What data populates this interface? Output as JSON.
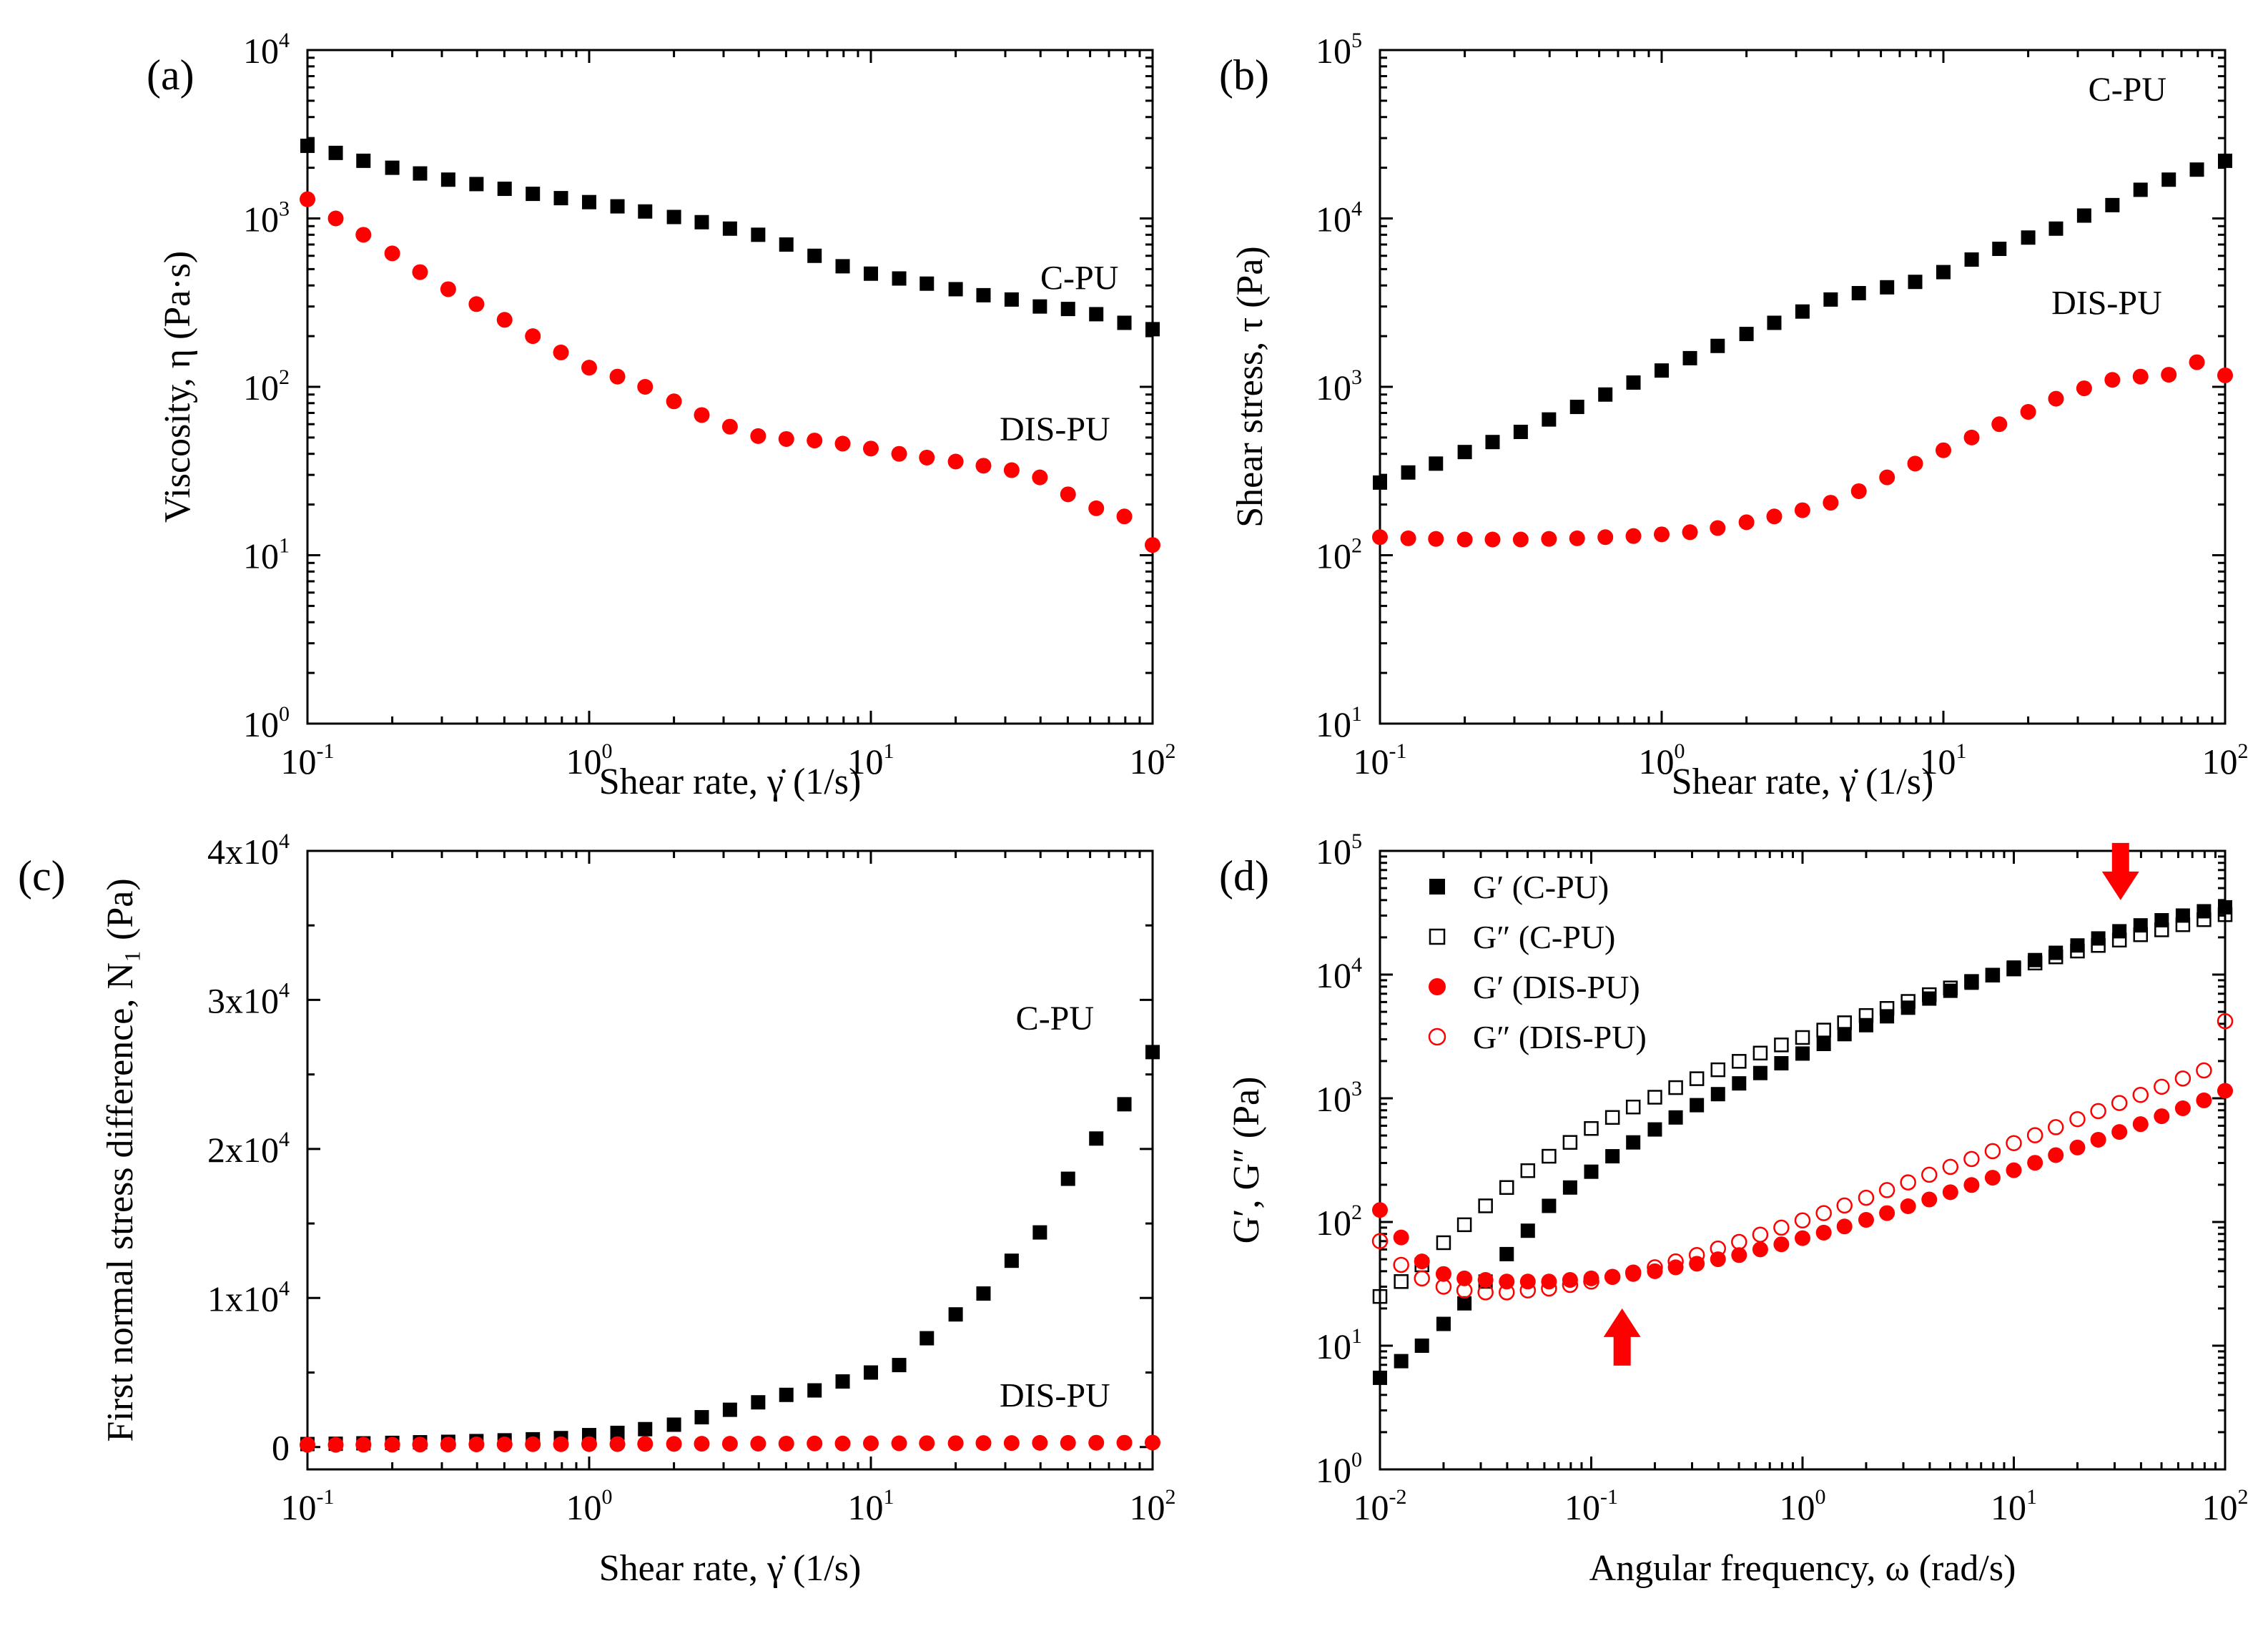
{
  "chart_data": [
    {
      "panel": "(a)",
      "type": "scatter",
      "xscale": "log",
      "yscale": "log",
      "xlim": [
        0.1,
        100
      ],
      "ylim": [
        1,
        10000
      ],
      "xlabel": "Shear rate, γ̇ (1/s)",
      "ylabel": "Viscosity, η (Pa·s)",
      "xticks": [
        {
          "b": "10",
          "e": "-1"
        },
        {
          "b": "10",
          "e": "0"
        },
        {
          "b": "10",
          "e": "1"
        },
        {
          "b": "10",
          "e": "2"
        }
      ],
      "yticks": [
        {
          "b": "10",
          "e": "0"
        },
        {
          "b": "10",
          "e": "1"
        },
        {
          "b": "10",
          "e": "2"
        },
        {
          "b": "10",
          "e": "3"
        },
        {
          "b": "10",
          "e": "4"
        }
      ],
      "series": [
        {
          "name": "C-PU",
          "marker": "filled-square",
          "color": "#000000",
          "x": [
            0.1,
            0.126,
            0.158,
            0.2,
            0.251,
            0.316,
            0.398,
            0.501,
            0.631,
            0.794,
            1,
            1.26,
            1.58,
            2,
            2.51,
            3.16,
            3.98,
            5.01,
            6.31,
            7.94,
            10,
            12.6,
            15.8,
            20,
            25.1,
            31.6,
            39.8,
            50.1,
            63.1,
            79.4,
            100
          ],
          "y": [
            2700,
            2450,
            2200,
            2000,
            1850,
            1700,
            1600,
            1500,
            1400,
            1320,
            1250,
            1180,
            1100,
            1020,
            950,
            870,
            800,
            700,
            600,
            520,
            470,
            440,
            410,
            380,
            350,
            330,
            300,
            290,
            270,
            240,
            220
          ]
        },
        {
          "name": "DIS-PU",
          "marker": "filled-circle",
          "color": "#ff0000",
          "x": [
            0.1,
            0.126,
            0.158,
            0.2,
            0.251,
            0.316,
            0.398,
            0.501,
            0.631,
            0.794,
            1,
            1.26,
            1.58,
            2,
            2.51,
            3.16,
            3.98,
            5.01,
            6.31,
            7.94,
            10,
            12.6,
            15.8,
            20,
            25.1,
            31.6,
            39.8,
            50.1,
            63.1,
            79.4,
            100
          ],
          "y": [
            1300,
            1000,
            800,
            620,
            480,
            380,
            310,
            250,
            200,
            160,
            130,
            115,
            100,
            82,
            68,
            58,
            51,
            49,
            48,
            46,
            43,
            40,
            38,
            36,
            34,
            32,
            29,
            23,
            19,
            17,
            11.5
          ]
        }
      ],
      "annotations": [
        {
          "text": "C-PU",
          "x": 55,
          "y": 380
        },
        {
          "text": "DIS-PU",
          "x": 45,
          "y": 48
        }
      ]
    },
    {
      "panel": "(b)",
      "type": "scatter",
      "xscale": "log",
      "yscale": "log",
      "xlim": [
        0.1,
        100
      ],
      "ylim": [
        10,
        100000
      ],
      "xlabel": "Shear rate, γ̇ (1/s)",
      "ylabel": "Shear stress, τ (Pa)",
      "xticks": [
        {
          "b": "10",
          "e": "-1"
        },
        {
          "b": "10",
          "e": "0"
        },
        {
          "b": "10",
          "e": "1"
        },
        {
          "b": "10",
          "e": "2"
        }
      ],
      "yticks": [
        {
          "b": "10",
          "e": "1"
        },
        {
          "b": "10",
          "e": "2"
        },
        {
          "b": "10",
          "e": "3"
        },
        {
          "b": "10",
          "e": "4"
        },
        {
          "b": "10",
          "e": "5"
        }
      ],
      "series": [
        {
          "name": "C-PU",
          "marker": "filled-square",
          "color": "#000000",
          "x": [
            0.1,
            0.126,
            0.158,
            0.2,
            0.251,
            0.316,
            0.398,
            0.501,
            0.631,
            0.794,
            1,
            1.26,
            1.58,
            2,
            2.51,
            3.16,
            3.98,
            5.01,
            6.31,
            7.94,
            10,
            12.6,
            15.8,
            20,
            25.1,
            31.6,
            39.8,
            50.1,
            63.1,
            79.4,
            100
          ],
          "y": [
            270,
            310,
            350,
            410,
            470,
            540,
            640,
            760,
            900,
            1060,
            1250,
            1480,
            1750,
            2060,
            2400,
            2800,
            3300,
            3600,
            3900,
            4200,
            4800,
            5700,
            6600,
            7700,
            8700,
            10400,
            12000,
            14800,
            17000,
            19500,
            22000
          ]
        },
        {
          "name": "DIS-PU",
          "marker": "filled-circle",
          "color": "#ff0000",
          "x": [
            0.1,
            0.126,
            0.158,
            0.2,
            0.251,
            0.316,
            0.398,
            0.501,
            0.631,
            0.794,
            1,
            1.26,
            1.58,
            2,
            2.51,
            3.16,
            3.98,
            5.01,
            6.31,
            7.94,
            10,
            12.6,
            15.8,
            20,
            25.1,
            31.6,
            39.8,
            50.1,
            63.1,
            79.4,
            100
          ],
          "y": [
            128,
            126,
            125,
            124,
            124,
            124,
            125,
            126,
            128,
            130,
            133,
            137,
            145,
            157,
            170,
            185,
            205,
            240,
            290,
            350,
            420,
            500,
            600,
            710,
            850,
            980,
            1100,
            1150,
            1180,
            1400,
            1170
          ]
        }
      ],
      "annotations": [
        {
          "text": "C-PU",
          "x": 45,
          "y": 50000
        },
        {
          "text": "DIS-PU",
          "x": 38,
          "y": 2700
        }
      ]
    },
    {
      "panel": "(c)",
      "type": "scatter",
      "xscale": "log",
      "yscale": "linear",
      "xlim": [
        0.1,
        100
      ],
      "ylim": [
        -1500,
        40000
      ],
      "xlabel": "Shear rate, γ̇ (1/s)",
      "ylabel": "First normal stress difference, N₁ (Pa)",
      "xticks": [
        {
          "b": "10",
          "e": "-1"
        },
        {
          "b": "10",
          "e": "0"
        },
        {
          "b": "10",
          "e": "1"
        },
        {
          "b": "10",
          "e": "2"
        }
      ],
      "yticks": [
        {
          "v": 0,
          "b": "0",
          "e": ""
        },
        {
          "v": 10000,
          "b": "1x10",
          "e": "4"
        },
        {
          "v": 20000,
          "b": "2x10",
          "e": "4"
        },
        {
          "v": 30000,
          "b": "3x10",
          "e": "4"
        },
        {
          "v": 40000,
          "b": "4x10",
          "e": "4"
        }
      ],
      "series": [
        {
          "name": "C-PU",
          "marker": "filled-square",
          "color": "#000000",
          "x": [
            0.1,
            0.126,
            0.158,
            0.2,
            0.251,
            0.316,
            0.398,
            0.501,
            0.631,
            0.794,
            1,
            1.26,
            1.58,
            2,
            2.51,
            3.16,
            3.98,
            5.01,
            6.31,
            7.94,
            10,
            12.6,
            15.8,
            20,
            25.1,
            31.6,
            39.8,
            50.1,
            63.1,
            79.4,
            100
          ],
          "y": [
            200,
            220,
            250,
            280,
            320,
            350,
            400,
            450,
            520,
            600,
            800,
            950,
            1200,
            1500,
            2000,
            2500,
            3000,
            3500,
            3800,
            4400,
            5000,
            5500,
            7300,
            8900,
            10300,
            12500,
            14400,
            18000,
            20700,
            23000,
            26500
          ]
        },
        {
          "name": "DIS-PU",
          "marker": "filled-circle",
          "color": "#ff0000",
          "x": [
            0.1,
            0.126,
            0.158,
            0.2,
            0.251,
            0.316,
            0.398,
            0.501,
            0.631,
            0.794,
            1,
            1.26,
            1.58,
            2,
            2.51,
            3.16,
            3.98,
            5.01,
            6.31,
            7.94,
            10,
            12.6,
            15.8,
            20,
            25.1,
            31.6,
            39.8,
            50.1,
            63.1,
            79.4,
            100
          ],
          "y": [
            150,
            150,
            160,
            160,
            170,
            170,
            180,
            180,
            190,
            190,
            200,
            200,
            210,
            210,
            220,
            220,
            230,
            230,
            240,
            240,
            250,
            250,
            260,
            260,
            270,
            270,
            280,
            280,
            290,
            290,
            300
          ]
        }
      ],
      "annotations": [
        {
          "text": "C-PU",
          "x": 45,
          "y": 28000
        },
        {
          "text": "DIS-PU",
          "x": 45,
          "y": 2700
        }
      ]
    },
    {
      "panel": "(d)",
      "type": "scatter",
      "xscale": "log",
      "yscale": "log",
      "xlim": [
        0.01,
        100
      ],
      "ylim": [
        1,
        100000
      ],
      "xlabel": "Angular frequency, ω (rad/s)",
      "ylabel": "G′, G″ (Pa)",
      "xticks": [
        {
          "b": "10",
          "e": "-2"
        },
        {
          "b": "10",
          "e": "-1"
        },
        {
          "b": "10",
          "e": "0"
        },
        {
          "b": "10",
          "e": "1"
        },
        {
          "b": "10",
          "e": "2"
        }
      ],
      "yticks": [
        {
          "b": "10",
          "e": "0"
        },
        {
          "b": "10",
          "e": "1"
        },
        {
          "b": "10",
          "e": "2"
        },
        {
          "b": "10",
          "e": "3"
        },
        {
          "b": "10",
          "e": "4"
        },
        {
          "b": "10",
          "e": "5"
        }
      ],
      "series": [
        {
          "name": "G′ (C-PU)",
          "marker": "filled-square",
          "color": "#000000",
          "x": [
            0.01,
            0.0126,
            0.0158,
            0.02,
            0.0251,
            0.0316,
            0.0398,
            0.0501,
            0.0631,
            0.0794,
            0.1,
            0.126,
            0.158,
            0.2,
            0.251,
            0.316,
            0.398,
            0.501,
            0.631,
            0.794,
            1,
            1.26,
            1.58,
            2,
            2.51,
            3.16,
            3.98,
            5.01,
            6.31,
            7.94,
            10,
            12.6,
            15.8,
            20,
            25.1,
            31.6,
            39.8,
            50.1,
            63.1,
            79.4,
            100
          ],
          "y": [
            5.5,
            7.5,
            10,
            15,
            22,
            33,
            55,
            85,
            135,
            190,
            255,
            340,
            440,
            560,
            700,
            880,
            1080,
            1320,
            1600,
            1920,
            2300,
            2750,
            3300,
            3900,
            4600,
            5400,
            6400,
            7400,
            8600,
            9900,
            11400,
            13100,
            15000,
            17200,
            19600,
            22400,
            25000,
            27500,
            30000,
            32500,
            35000
          ]
        },
        {
          "name": "G″ (C-PU)",
          "marker": "open-square",
          "color": "#000000",
          "x": [
            0.01,
            0.0126,
            0.0158,
            0.02,
            0.0251,
            0.0316,
            0.0398,
            0.0501,
            0.0631,
            0.0794,
            0.1,
            0.126,
            0.158,
            0.2,
            0.251,
            0.316,
            0.398,
            0.501,
            0.631,
            0.794,
            1,
            1.26,
            1.58,
            2,
            2.51,
            3.16,
            3.98,
            5.01,
            6.31,
            7.94,
            10,
            12.6,
            15.8,
            20,
            25.1,
            31.6,
            39.8,
            50.1,
            63.1,
            79.4,
            100
          ],
          "y": [
            25,
            33,
            45,
            68,
            95,
            135,
            190,
            260,
            340,
            440,
            570,
            700,
            850,
            1020,
            1220,
            1440,
            1700,
            1990,
            2320,
            2700,
            3100,
            3560,
            4080,
            4670,
            5330,
            6070,
            6880,
            7800,
            8800,
            9900,
            11100,
            12400,
            13900,
            15500,
            17200,
            19000,
            21000,
            23000,
            25300,
            27800,
            30500
          ]
        },
        {
          "name": "G′ (DIS-PU)",
          "marker": "filled-circle",
          "color": "#ff0000",
          "x": [
            0.01,
            0.0126,
            0.0158,
            0.02,
            0.0251,
            0.0316,
            0.0398,
            0.0501,
            0.0631,
            0.0794,
            0.1,
            0.126,
            0.158,
            0.2,
            0.251,
            0.316,
            0.398,
            0.501,
            0.631,
            0.794,
            1,
            1.26,
            1.58,
            2,
            2.51,
            3.16,
            3.98,
            5.01,
            6.31,
            7.94,
            10,
            12.6,
            15.8,
            20,
            25.1,
            31.6,
            39.8,
            50.1,
            63.1,
            79.4,
            100
          ],
          "y": [
            125,
            75,
            48,
            38,
            35,
            34,
            33,
            33,
            33,
            34,
            35,
            36,
            38,
            40,
            43,
            46,
            50,
            54,
            60,
            66,
            74,
            82,
            92,
            104,
            118,
            134,
            152,
            174,
            199,
            228,
            262,
            301,
            347,
            400,
            462,
            534,
            618,
            716,
            830,
            962,
            1150
          ]
        },
        {
          "name": "G″ (DIS-PU)",
          "marker": "open-circle",
          "color": "#ff0000",
          "x": [
            0.01,
            0.0126,
            0.0158,
            0.02,
            0.0251,
            0.0316,
            0.0398,
            0.0501,
            0.0631,
            0.0794,
            0.1,
            0.126,
            0.158,
            0.2,
            0.251,
            0.316,
            0.398,
            0.501,
            0.631,
            0.794,
            1,
            1.26,
            1.58,
            2,
            2.51,
            3.16,
            3.98,
            5.01,
            6.31,
            7.94,
            10,
            12.6,
            15.8,
            20,
            25.1,
            31.6,
            39.8,
            50.1,
            63.1,
            79.4,
            100
          ],
          "y": [
            70,
            45,
            35,
            30,
            28,
            27,
            27,
            28,
            29,
            31,
            33,
            36,
            39,
            43,
            48,
            54,
            61,
            69,
            79,
            90,
            103,
            118,
            136,
            157,
            181,
            209,
            241,
            279,
            323,
            374,
            434,
            503,
            584,
            678,
            788,
            916,
            1065,
            1240,
            1445,
            1680,
            4200
          ]
        }
      ],
      "arrows": [
        {
          "direction": "down",
          "x": 32,
          "y": 40000
        },
        {
          "direction": "up",
          "x": 0.14,
          "y": 20
        }
      ],
      "legend_position": "top-left"
    }
  ]
}
